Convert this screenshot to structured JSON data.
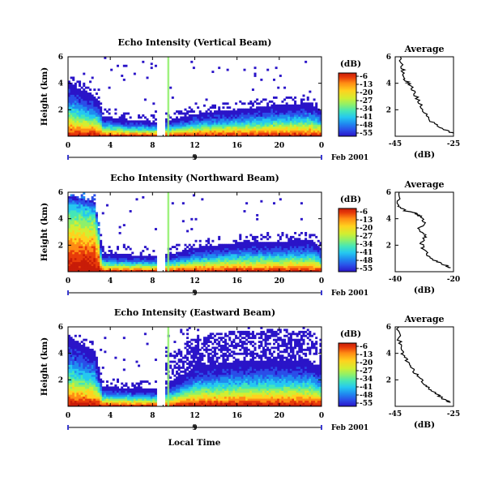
{
  "colors": {
    "scale": [
      "#2a14c8",
      "#2a4ee8",
      "#1f8cf0",
      "#25c8f0",
      "#45e6b8",
      "#8ef06a",
      "#d2ee32",
      "#ffd21e",
      "#ff8c14",
      "#e83c0a",
      "#c81c08"
    ]
  },
  "figure": {
    "xlabel": "Local Time",
    "date_label": "Feb 2001",
    "day_label": "9",
    "colorbar_unit": "(dB)",
    "average_title": "Average"
  },
  "chart_data": [
    {
      "type": "heatmap",
      "title": "Echo Intensity (Vertical Beam)",
      "ylabel": "Height (km)",
      "xlim": [
        0,
        24
      ],
      "ylim": [
        0,
        6
      ],
      "x_ticks": [
        "0",
        "4",
        "8",
        "12",
        "16",
        "20",
        "0"
      ],
      "y_ticks": [
        "2",
        "4",
        "6"
      ],
      "colorbar": {
        "label": "(dB)",
        "ticks": [
          "-6",
          "-13",
          "-20",
          "-27",
          "-34",
          "-41",
          "-48",
          "-55"
        ]
      },
      "echo_top_km": [
        [
          0,
          4.2
        ],
        [
          1,
          3.6
        ],
        [
          2,
          3.3
        ],
        [
          3,
          2.6
        ],
        [
          3.3,
          1.5
        ],
        [
          5,
          1.3
        ],
        [
          8.3,
          1.1
        ],
        [
          9.5,
          1.2
        ],
        [
          12,
          1.7
        ],
        [
          16,
          2.0
        ],
        [
          20,
          2.4
        ],
        [
          23,
          2.5
        ],
        [
          24,
          1.9
        ]
      ],
      "data_gaps_hours": [
        [
          8.3,
          9.3
        ]
      ]
    },
    {
      "type": "heatmap",
      "title": "Echo Intensity (Northward Beam)",
      "ylabel": "Height (km)",
      "xlim": [
        0,
        24
      ],
      "ylim": [
        0,
        6
      ],
      "x_ticks": [
        "0",
        "4",
        "8",
        "12",
        "16",
        "20",
        "0"
      ],
      "y_ticks": [
        "2",
        "4",
        "6"
      ],
      "colorbar": {
        "label": "(dB)",
        "ticks": [
          "-6",
          "-13",
          "-20",
          "-27",
          "-34",
          "-41",
          "-48",
          "-55"
        ]
      },
      "echo_top_km": [
        [
          0,
          5.7
        ],
        [
          1,
          5.6
        ],
        [
          2.5,
          5.3
        ],
        [
          3.3,
          1.4
        ],
        [
          5,
          1.3
        ],
        [
          8.3,
          1.2
        ],
        [
          9.5,
          1.3
        ],
        [
          12,
          1.8
        ],
        [
          16,
          2.2
        ],
        [
          20,
          2.3
        ],
        [
          23,
          2.4
        ],
        [
          24,
          1.8
        ]
      ],
      "data_gaps_hours": [
        [
          8.3,
          9.3
        ]
      ]
    },
    {
      "type": "heatmap",
      "title": "Echo Intensity (Eastward Beam)",
      "ylabel": "Height (km)",
      "xlim": [
        0,
        24
      ],
      "ylim": [
        0,
        6
      ],
      "x_ticks": [
        "0",
        "4",
        "8",
        "12",
        "16",
        "20",
        "0"
      ],
      "y_ticks": [
        "2",
        "4",
        "6"
      ],
      "colorbar": {
        "label": "(dB)",
        "ticks": [
          "-6",
          "-13",
          "-20",
          "-27",
          "-34",
          "-41",
          "-48",
          "-55"
        ]
      },
      "echo_top_km": [
        [
          0,
          5.4
        ],
        [
          1,
          4.8
        ],
        [
          2.5,
          4.2
        ],
        [
          3.3,
          1.5
        ],
        [
          5,
          1.4
        ],
        [
          8.3,
          1.3
        ],
        [
          9.5,
          1.6
        ],
        [
          12,
          3.0
        ],
        [
          16,
          3.4
        ],
        [
          20,
          3.5
        ],
        [
          23,
          3.4
        ],
        [
          24,
          2.8
        ]
      ],
      "data_gaps_hours": [
        [
          8.3,
          9.3
        ]
      ]
    },
    {
      "type": "line",
      "title": "Average",
      "xlabel": "(dB)",
      "xlim": [
        -45,
        -25
      ],
      "ylim": [
        0,
        6
      ],
      "x_ticks": [
        "-45",
        "-25"
      ],
      "y_ticks": [
        "2",
        "4",
        "6"
      ],
      "x": [
        -43.5,
        -42.5,
        -42,
        -41.5,
        -40,
        -38.5,
        -37,
        -35,
        -33,
        -30,
        -27,
        -25
      ],
      "y": [
        6,
        5.1,
        4.6,
        4.3,
        3.9,
        3.3,
        2.6,
        1.9,
        1.2,
        0.7,
        0.4,
        0.2
      ]
    },
    {
      "type": "line",
      "title": "Average",
      "xlabel": "(dB)",
      "xlim": [
        -40,
        -20
      ],
      "ylim": [
        0,
        6
      ],
      "x_ticks": [
        "-40",
        "-20"
      ],
      "y_ticks": [
        "2",
        "4",
        "6"
      ],
      "x": [
        -39,
        -38.8,
        -36.5,
        -33,
        -31.5,
        -30,
        -32,
        -29.5,
        -31,
        -30.5,
        -29,
        -26,
        -23,
        -21
      ],
      "y": [
        6,
        5.0,
        4.6,
        4.4,
        4.2,
        3.7,
        3.2,
        2.7,
        2.2,
        1.7,
        1.3,
        0.8,
        0.5,
        0.3
      ]
    },
    {
      "type": "line",
      "title": "Average",
      "xlabel": "(dB)",
      "xlim": [
        -45,
        -25
      ],
      "ylim": [
        0,
        6
      ],
      "x_ticks": [
        "-45",
        "-25"
      ],
      "y_ticks": [
        "2",
        "4",
        "6"
      ],
      "x": [
        -44,
        -43.6,
        -43,
        -42,
        -40.5,
        -39,
        -37,
        -35,
        -33,
        -30.5,
        -28,
        -26
      ],
      "y": [
        6,
        5.0,
        4.3,
        3.8,
        3.3,
        2.8,
        2.2,
        1.7,
        1.3,
        0.9,
        0.5,
        0.3
      ]
    }
  ]
}
